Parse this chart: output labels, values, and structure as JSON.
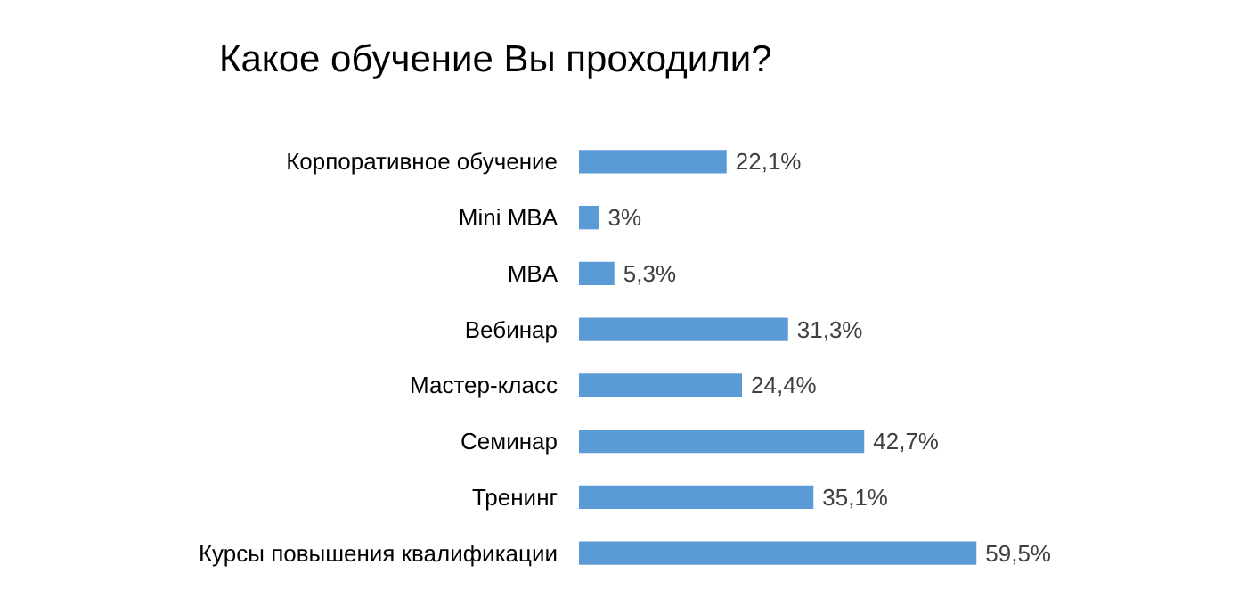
{
  "chart_data": {
    "type": "bar",
    "orientation": "horizontal",
    "title": "Какое обучение Вы проходили?",
    "categories": [
      "Корпоративное обучение",
      "Mini MBA",
      "MBA",
      "Вебинар",
      "Мастер-класс",
      "Семинар",
      "Тренинг",
      "Курсы повышения квалификации"
    ],
    "values": [
      22.1,
      3,
      5.3,
      31.3,
      24.4,
      42.7,
      35.1,
      59.5
    ],
    "value_labels": [
      "22,1%",
      "3%",
      "5,3%",
      "31,3%",
      "24,4%",
      "42,7%",
      "35,1%",
      "59,5%"
    ],
    "color": "#5b9bd5"
  }
}
